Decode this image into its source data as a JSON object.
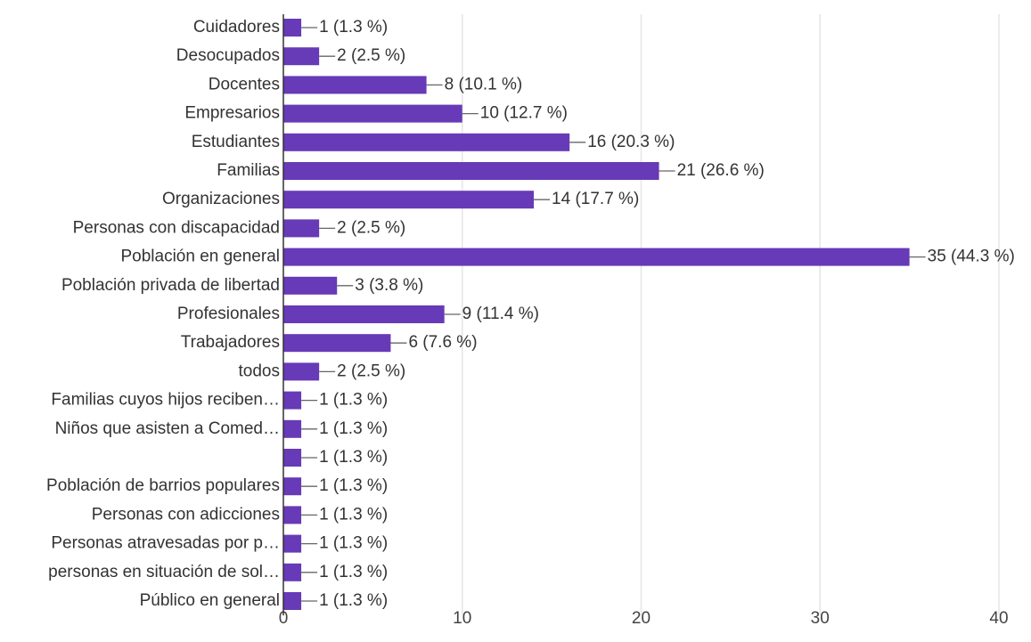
{
  "chart_data": {
    "type": "bar",
    "orientation": "horizontal",
    "title": "",
    "xlabel": "",
    "ylabel": "",
    "categories": [
      "Cuidadores",
      "Desocupados",
      "Docentes",
      "Empresarios",
      "Estudiantes",
      "Familias",
      "Organizaciones",
      "Personas con discapacidad",
      "Población en general",
      "Población privada de libertad",
      "Profesionales",
      "Trabajadores",
      "todos",
      "Familias cuyos hijos reciben…",
      "Niños que asisten a Comed…",
      "",
      "Población de barrios populares",
      "Personas con adicciones",
      "Personas atravesadas por p…",
      "personas en situación de sol…",
      "Público en general"
    ],
    "values": [
      1,
      2,
      8,
      10,
      16,
      21,
      14,
      2,
      35,
      3,
      9,
      6,
      2,
      1,
      1,
      1,
      1,
      1,
      1,
      1,
      1
    ],
    "value_labels": [
      "1 (1.3 %)",
      "2 (2.5 %)",
      "8 (10.1 %)",
      "10 (12.7 %)",
      "16 (20.3 %)",
      "21 (26.6 %)",
      "14 (17.7 %)",
      "2 (2.5 %)",
      "35 (44.3 %)",
      "3 (3.8 %)",
      "9 (11.4 %)",
      "6 (7.6 %)",
      "2 (2.5 %)",
      "1 (1.3 %)",
      "1 (1.3 %)",
      "1 (1.3 %)",
      "1 (1.3 %)",
      "1 (1.3 %)",
      "1 (1.3 %)",
      "1 (1.3 %)",
      "1 (1.3 %)"
    ],
    "xlim": [
      0,
      40
    ],
    "xticks": [
      0,
      10,
      20,
      30,
      40
    ],
    "xtick_labels": [
      "0",
      "10",
      "20",
      "30",
      "40"
    ],
    "grid": "vertical",
    "legend": "none",
    "colors": {
      "bar": "#673ab7",
      "grid": "#e6e6e6",
      "axis": "#333333",
      "connector": "#666666"
    }
  }
}
